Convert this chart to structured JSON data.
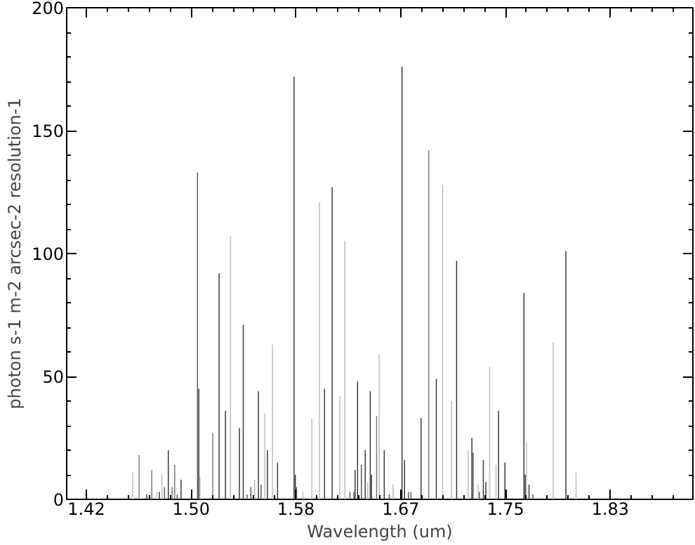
{
  "chart_data": {
    "type": "bar",
    "xlabel": "Wavelength (um)",
    "ylabel": "photon s-1 m-2 arcsec-2 resolution-1",
    "xlim": [
      1.402,
      1.895
    ],
    "ylim": [
      0,
      200
    ],
    "xticks": [
      {
        "value": 1.4175,
        "label": "1.42"
      },
      {
        "value": 1.5,
        "label": "1.50"
      },
      {
        "value": 1.5825,
        "label": "1.58"
      },
      {
        "value": 1.665,
        "label": "1.67"
      },
      {
        "value": 1.7475,
        "label": "1.75"
      },
      {
        "value": 1.83,
        "label": "1.83"
      }
    ],
    "yticks": [
      0,
      50,
      100,
      150,
      200
    ],
    "x": [
      1.454,
      1.459,
      1.465,
      1.469,
      1.473,
      1.475,
      1.477,
      1.479,
      1.482,
      1.485,
      1.487,
      1.489,
      1.492,
      1.505,
      1.506,
      1.507,
      1.517,
      1.522,
      1.527,
      1.531,
      1.538,
      1.541,
      1.544,
      1.547,
      1.55,
      1.553,
      1.555,
      1.558,
      1.56,
      1.564,
      1.568,
      1.581,
      1.582,
      1.583,
      1.588,
      1.595,
      1.601,
      1.605,
      1.611,
      1.617,
      1.621,
      1.625,
      1.628,
      1.629,
      1.631,
      1.634,
      1.637,
      1.639,
      1.641,
      1.642,
      1.646,
      1.648,
      1.652,
      1.656,
      1.659,
      1.666,
      1.668,
      1.671,
      1.673,
      1.681,
      1.687,
      1.693,
      1.698,
      1.705,
      1.709,
      1.718,
      1.721,
      1.722,
      1.726,
      1.727,
      1.73,
      1.732,
      1.735,
      1.74,
      1.742,
      1.747,
      1.762,
      1.763,
      1.764,
      1.766,
      1.769,
      1.785,
      1.795,
      1.803
    ],
    "values": [
      11,
      18,
      2,
      12,
      3,
      3,
      10,
      5,
      20,
      5,
      14,
      2,
      8,
      133,
      45,
      9,
      27,
      92,
      36,
      107,
      29,
      71,
      2,
      5,
      8,
      44,
      6,
      35,
      20,
      63,
      15,
      172,
      10,
      5,
      3,
      33,
      121,
      45,
      127,
      42,
      105,
      3,
      3,
      12,
      48,
      14,
      20,
      7,
      44,
      10,
      34,
      59,
      20,
      2,
      6,
      176,
      16,
      3,
      3,
      33,
      142,
      49,
      128,
      40,
      97,
      20,
      25,
      19,
      6,
      3,
      16,
      7,
      54,
      14,
      36,
      15,
      84,
      10,
      23,
      6,
      2,
      64,
      101,
      11
    ],
    "colors": [
      "#bbbbbb",
      "#777777",
      "#333333",
      "#777777",
      "#bbbbbb",
      "#333333",
      "#bbbbbb",
      "#555555",
      "#333333",
      "#777777",
      "#777777",
      "#555555",
      "#333333",
      "#555555",
      "#333333",
      "#bbbbbb",
      "#777777",
      "#333333",
      "#333333",
      "#bbbbbb",
      "#333333",
      "#333333",
      "#555555",
      "#555555",
      "#bbbbbb",
      "#333333",
      "#555555",
      "#bbbbbb",
      "#333333",
      "#bbbbbb",
      "#333333",
      "#333333",
      "#333333",
      "#555555",
      "#bbbbbb",
      "#bbbbbb",
      "#bbbbbb",
      "#333333",
      "#333333",
      "#bbbbbb",
      "#bbbbbb",
      "#555555",
      "#555555",
      "#333333",
      "#333333",
      "#555555",
      "#333333",
      "#bbbbbb",
      "#333333",
      "#333333",
      "#777777",
      "#bbbbbb",
      "#333333",
      "#555555",
      "#bbbbbb",
      "#333333",
      "#333333",
      "#555555",
      "#555555",
      "#333333",
      "#777777",
      "#333333",
      "#bbbbbb",
      "#bbbbbb",
      "#333333",
      "#bbbbbb",
      "#333333",
      "#555555",
      "#bbbbbb",
      "#555555",
      "#333333",
      "#333333",
      "#bbbbbb",
      "#bbbbbb",
      "#333333",
      "#333333",
      "#333333",
      "#333333",
      "#bbbbbb",
      "#333333",
      "#555555",
      "#bbbbbb",
      "#333333",
      "#bbbbbb"
    ],
    "grid": false
  }
}
